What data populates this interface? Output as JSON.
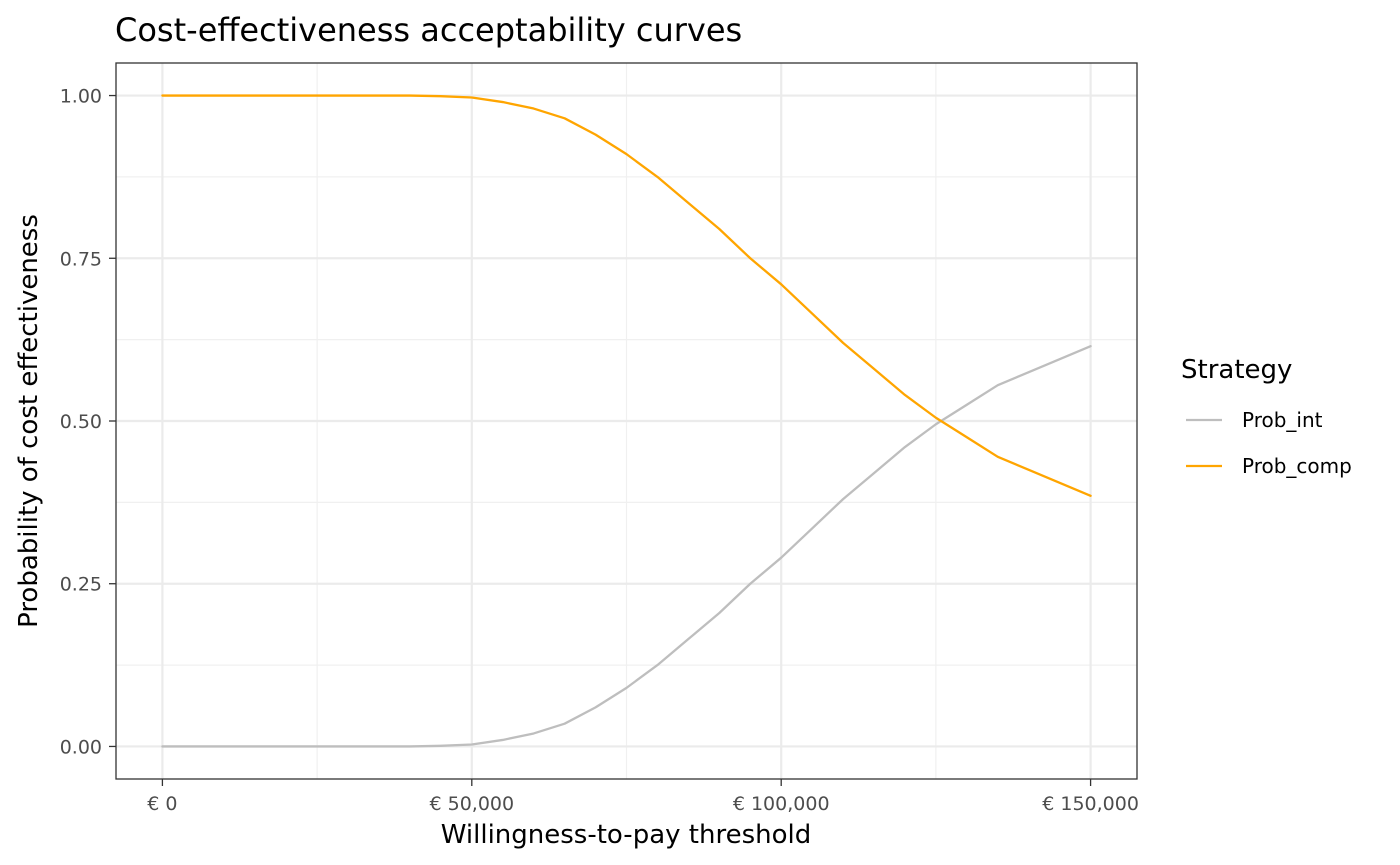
{
  "chart_data": {
    "type": "line",
    "title": "Cost-effectiveness acceptability curves",
    "xlabel": "Willingness-to-pay threshold",
    "ylabel": "Probability of cost effectiveness",
    "xlim": [
      -7500,
      157500
    ],
    "ylim": [
      -0.05,
      1.05
    ],
    "x_ticks": [
      0,
      50000,
      100000,
      150000
    ],
    "x_tick_labels": [
      "€ 0",
      "€ 50,000",
      "€ 100,000",
      "€ 150,000"
    ],
    "y_ticks": [
      0,
      0.25,
      0.5,
      0.75,
      1
    ],
    "y_tick_labels": [
      "0.00",
      "0.25",
      "0.50",
      "0.75",
      "1.00"
    ],
    "grid": true,
    "legend": {
      "title": "Strategy",
      "position": "right"
    },
    "x": [
      0,
      5000,
      10000,
      15000,
      20000,
      25000,
      30000,
      35000,
      40000,
      45000,
      50000,
      55000,
      60000,
      65000,
      70000,
      75000,
      80000,
      85000,
      90000,
      95000,
      100000,
      105000,
      110000,
      115000,
      120000,
      125000,
      130000,
      135000,
      140000,
      145000,
      150000
    ],
    "series": [
      {
        "name": "Prob_int",
        "color": "#bebebe",
        "values": [
          0,
          0,
          0,
          0,
          0,
          0,
          0,
          0,
          0,
          0.001,
          0.003,
          0.01,
          0.02,
          0.035,
          0.06,
          0.09,
          0.125,
          0.165,
          0.205,
          0.25,
          0.29,
          0.335,
          0.38,
          0.42,
          0.46,
          0.495,
          0.525,
          0.555,
          0.575,
          0.595,
          0.615
        ]
      },
      {
        "name": "Prob_comp",
        "color": "#ffa500",
        "values": [
          1,
          1,
          1,
          1,
          1,
          1,
          1,
          1,
          1,
          0.999,
          0.997,
          0.99,
          0.98,
          0.965,
          0.94,
          0.91,
          0.875,
          0.835,
          0.795,
          0.75,
          0.71,
          0.665,
          0.62,
          0.58,
          0.54,
          0.505,
          0.475,
          0.445,
          0.425,
          0.405,
          0.385
        ]
      }
    ]
  }
}
